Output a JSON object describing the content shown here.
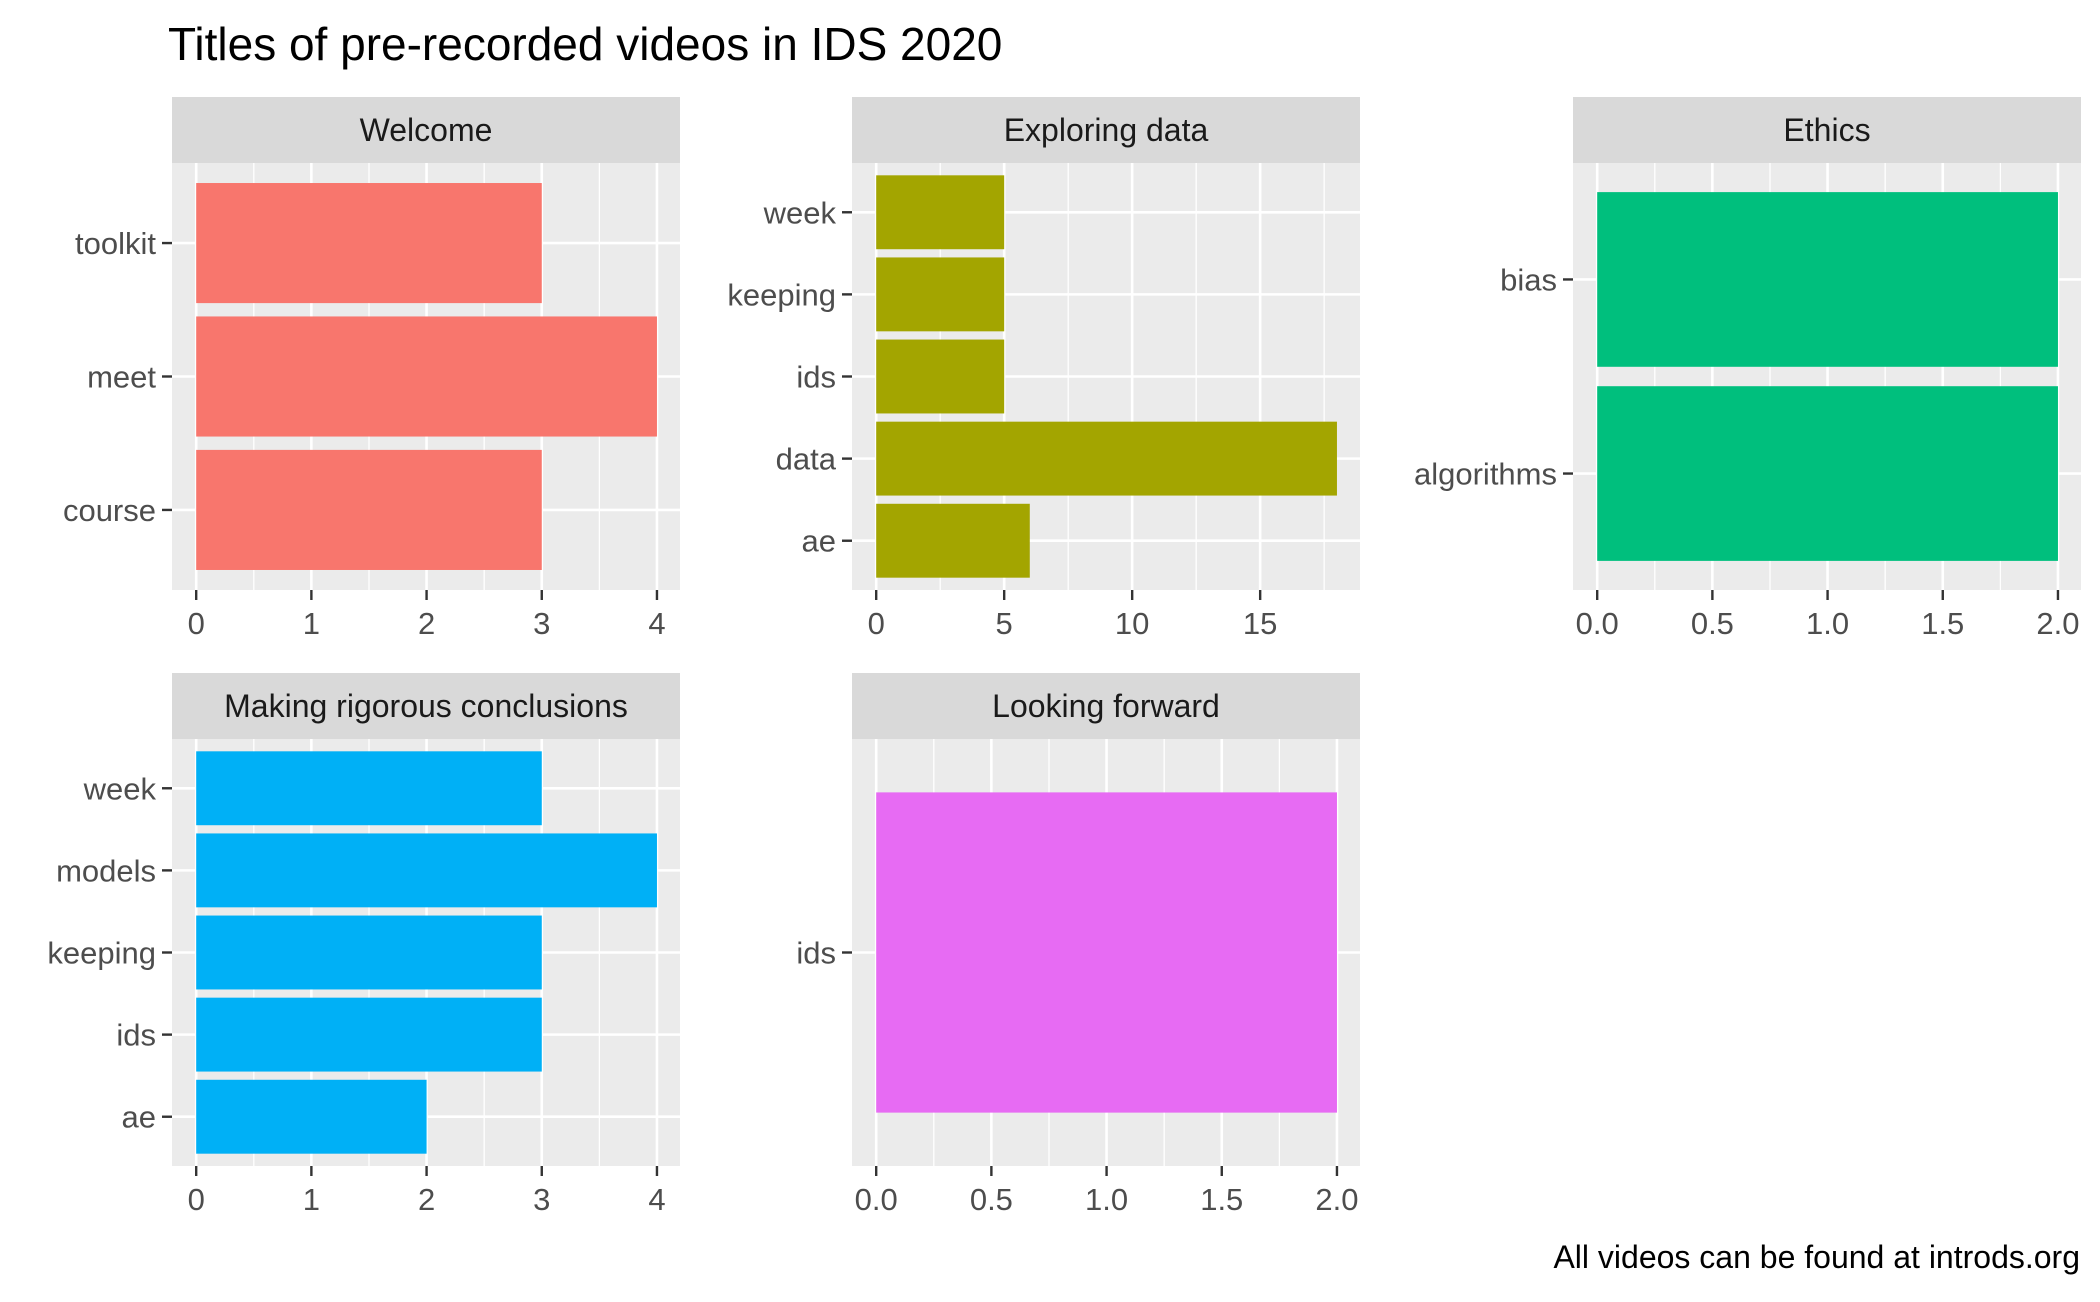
{
  "chart_data": {
    "type": "bar",
    "orientation": "horizontal",
    "title": "Titles of pre-recorded videos in  IDS 2020",
    "caption": "All videos can be found at introds.org",
    "xlabel": "",
    "ylabel": "",
    "grid": true,
    "legend": "none",
    "facets": [
      {
        "name": "Welcome",
        "color": "#F8766D",
        "categories": [
          "toolkit",
          "meet",
          "course"
        ],
        "values": [
          3,
          4,
          3
        ],
        "xlim": [
          0,
          4.2
        ],
        "xticks": [
          0,
          1,
          2,
          3,
          4
        ],
        "xtick_labels": [
          "0",
          "1",
          "2",
          "3",
          "4"
        ]
      },
      {
        "name": "Exploring data",
        "color": "#A3A500",
        "categories": [
          "week",
          "keeping",
          "ids",
          "data",
          "ae"
        ],
        "values": [
          5,
          5,
          5,
          18,
          6
        ],
        "xlim": [
          0,
          18.9
        ],
        "xticks": [
          0,
          5,
          10,
          15
        ],
        "xtick_labels": [
          "0",
          "5",
          "10",
          "15"
        ]
      },
      {
        "name": "Ethics",
        "color": "#00BF7D",
        "categories": [
          "bias",
          "algorithms"
        ],
        "values": [
          2,
          2
        ],
        "xlim": [
          0,
          2.1
        ],
        "xticks": [
          0,
          0.5,
          1,
          1.5,
          2
        ],
        "xtick_labels": [
          "0.0",
          "0.5",
          "1.0",
          "1.5",
          "2.0"
        ]
      },
      {
        "name": "Making rigorous conclusions",
        "color": "#00B0F6",
        "categories": [
          "week",
          "models",
          "keeping",
          "ids",
          "ae"
        ],
        "values": [
          3,
          4,
          3,
          3,
          2
        ],
        "xlim": [
          0,
          4.2
        ],
        "xticks": [
          0,
          1,
          2,
          3,
          4
        ],
        "xtick_labels": [
          "0",
          "1",
          "2",
          "3",
          "4"
        ]
      },
      {
        "name": "Looking forward",
        "color": "#E76BF3",
        "categories": [
          "ids"
        ],
        "values": [
          2
        ],
        "xlim": [
          0,
          2.1
        ],
        "xticks": [
          0,
          0.5,
          1,
          1.5,
          2
        ],
        "xtick_labels": [
          "0.0",
          "0.5",
          "1.0",
          "1.5",
          "2.0"
        ]
      }
    ]
  }
}
